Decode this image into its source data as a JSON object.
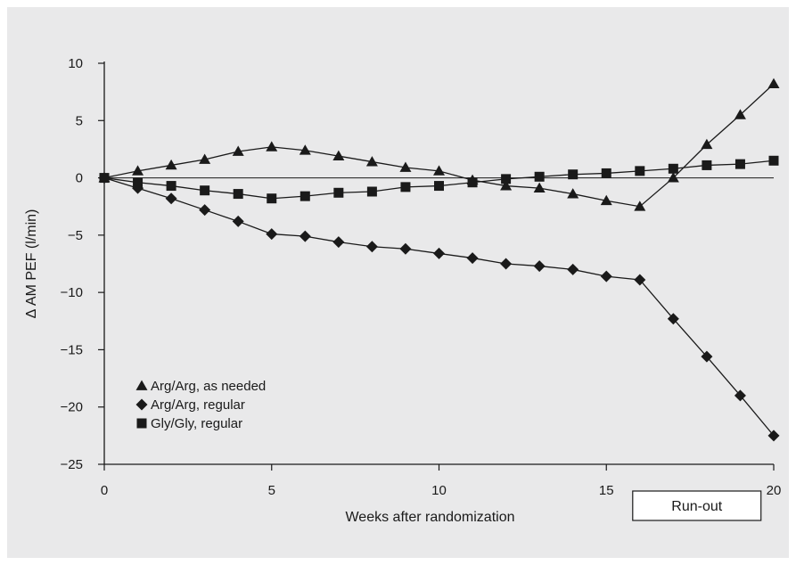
{
  "chart_data": {
    "type": "line",
    "xlabel": "Weeks after randomization",
    "ylabel": "Δ AM PEF (l/min)",
    "xlim": [
      0,
      20
    ],
    "ylim": [
      -25,
      10
    ],
    "x_ticks": [
      0,
      5,
      10,
      15,
      20
    ],
    "x_tick_labels": [
      "0",
      "5",
      "10",
      "15",
      "20"
    ],
    "y_ticks": [
      10,
      5,
      0,
      -5,
      -10,
      -15,
      -20,
      -25
    ],
    "y_tick_labels": [
      "10",
      "5",
      "0",
      "−5",
      "−10",
      "−15",
      "−20",
      "−25"
    ],
    "zero_line": true,
    "grid": false,
    "legend_position": "bottom-left",
    "annotation": {
      "label": "Run-out",
      "x_start": 16,
      "x_end": 19.3
    },
    "series": [
      {
        "name": "Arg/Arg, as needed",
        "marker": "triangle",
        "x": [
          0,
          1,
          2,
          3,
          4,
          5,
          6,
          7,
          8,
          9,
          10,
          11,
          12,
          13,
          14,
          15,
          16,
          17,
          18,
          19,
          20
        ],
        "y": [
          0,
          0.6,
          1.1,
          1.6,
          2.3,
          2.7,
          2.4,
          1.9,
          1.4,
          0.9,
          0.6,
          -0.2,
          -0.7,
          -0.9,
          -1.4,
          -2.0,
          -2.5,
          0,
          2.9,
          5.5,
          8.2
        ]
      },
      {
        "name": "Arg/Arg, regular",
        "marker": "diamond",
        "x": [
          0,
          1,
          2,
          3,
          4,
          5,
          6,
          7,
          8,
          9,
          10,
          11,
          12,
          13,
          14,
          15,
          16,
          17,
          18,
          19,
          20
        ],
        "y": [
          0,
          -0.9,
          -1.8,
          -2.8,
          -3.8,
          -4.9,
          -5.1,
          -5.6,
          -6.0,
          -6.2,
          -6.6,
          -7.0,
          -7.5,
          -7.7,
          -8.0,
          -8.6,
          -8.9,
          -12.3,
          -15.6,
          -19.0,
          -22.5
        ]
      },
      {
        "name": "Gly/Gly, regular",
        "marker": "square",
        "x": [
          0,
          1,
          2,
          3,
          4,
          5,
          6,
          7,
          8,
          9,
          10,
          11,
          12,
          13,
          14,
          15,
          16,
          17,
          18,
          19,
          20
        ],
        "y": [
          0,
          -0.4,
          -0.7,
          -1.1,
          -1.4,
          -1.8,
          -1.6,
          -1.3,
          -1.2,
          -0.8,
          -0.7,
          -0.4,
          -0.1,
          0.1,
          0.3,
          0.4,
          0.6,
          0.8,
          1.1,
          1.2,
          1.5
        ]
      }
    ]
  }
}
